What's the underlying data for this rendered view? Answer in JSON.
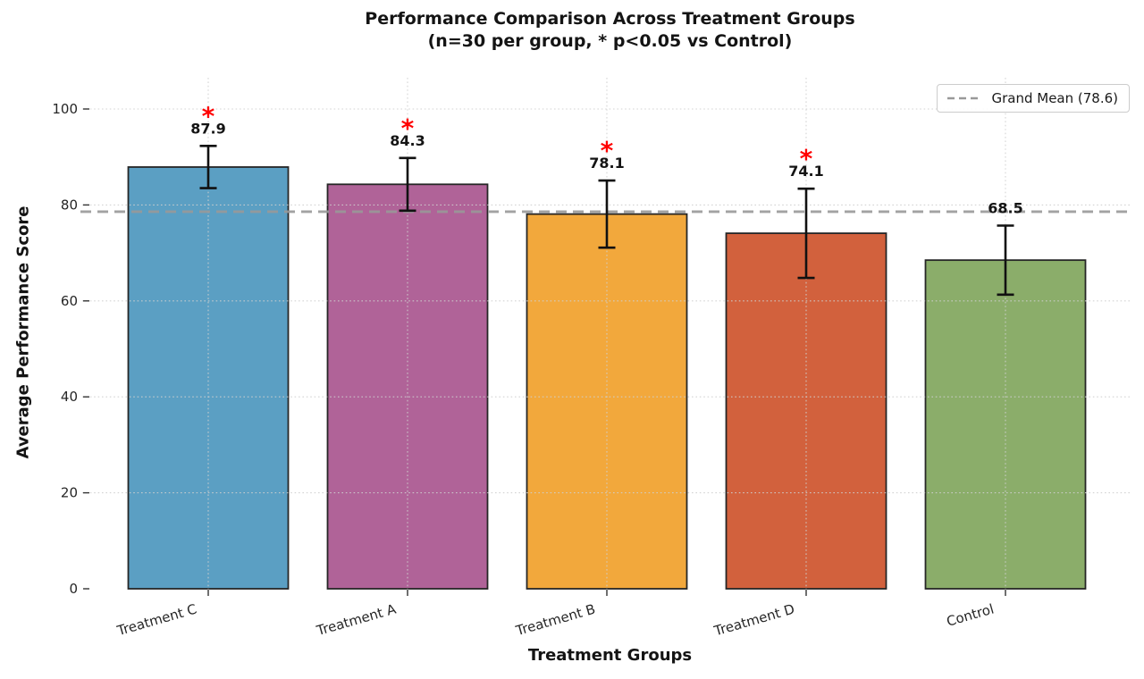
{
  "chart_data": {
    "type": "bar",
    "title": "Performance Comparison Across Treatment Groups",
    "subtitle": "(n=30 per group, * p<0.05 vs Control)",
    "xlabel": "Treatment Groups",
    "ylabel": "Average Performance Score",
    "categories": [
      "Treatment C",
      "Treatment A",
      "Treatment B",
      "Treatment D",
      "Control"
    ],
    "values": [
      87.9,
      84.3,
      78.1,
      74.1,
      68.5
    ],
    "errors": [
      4.4,
      5.5,
      7.0,
      9.3,
      7.2
    ],
    "value_labels": [
      "87.9",
      "84.3",
      "78.1",
      "74.1",
      "68.5"
    ],
    "significant": [
      true,
      true,
      true,
      true,
      false
    ],
    "significance_marker": "*",
    "significance_color": "#FF0000",
    "bar_colors": [
      "#5B9FC3",
      "#B06398",
      "#F2A83C",
      "#D2613D",
      "#8BAD6A"
    ],
    "bar_edge_color": "#262626",
    "yticks": [
      "0",
      "20",
      "40",
      "60",
      "80",
      "100"
    ],
    "ylim": [
      0,
      107
    ],
    "grid": true,
    "grid_style": "dotted",
    "reference_line": {
      "value": 78.6,
      "label": "Grand Mean (78.6)",
      "color": "#999999",
      "style": "dashed"
    },
    "legend_position": "upper right"
  }
}
